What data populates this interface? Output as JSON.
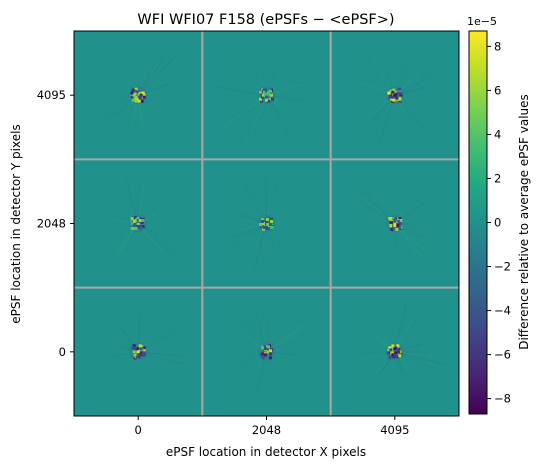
{
  "chart_data": {
    "type": "heatmap",
    "title": "WFI WFI07 F158 (ePSFs − <ePSF>)",
    "xlabel": "ePSF location in detector X pixels",
    "ylabel": "ePSF location in detector Y pixels",
    "x_ticks": [
      "0",
      "2048",
      "4095"
    ],
    "y_ticks": [
      "4095",
      "2048",
      "0"
    ],
    "grid": {
      "rows": 3,
      "cols": 3,
      "separator_color": "#a8a8a8"
    },
    "colorbar": {
      "label": "Difference relative to average ePSF values",
      "min": -8.7,
      "max": 8.7,
      "ticks": [
        8,
        6,
        4,
        2,
        0,
        -2,
        -4,
        -6,
        -8
      ],
      "tick_labels": [
        "8",
        "6",
        "4",
        "2",
        "0",
        "−2",
        "−4",
        "−6",
        "−8"
      ],
      "exponent_label": "1e−5",
      "colormap": "viridis"
    },
    "background_color": "#21918c",
    "cells": [
      {
        "x": "0",
        "y": "4095",
        "peak": 8.5
      },
      {
        "x": "2048",
        "y": "4095",
        "peak": 7.0
      },
      {
        "x": "4095",
        "y": "4095",
        "peak": 8.5
      },
      {
        "x": "0",
        "y": "2048",
        "peak": 7.0
      },
      {
        "x": "2048",
        "y": "2048",
        "peak": 6.0
      },
      {
        "x": "4095",
        "y": "2048",
        "peak": 8.0
      },
      {
        "x": "0",
        "y": "0",
        "peak": 8.5
      },
      {
        "x": "2048",
        "y": "0",
        "peak": 7.5
      },
      {
        "x": "4095",
        "y": "0",
        "peak": 8.5
      }
    ]
  }
}
